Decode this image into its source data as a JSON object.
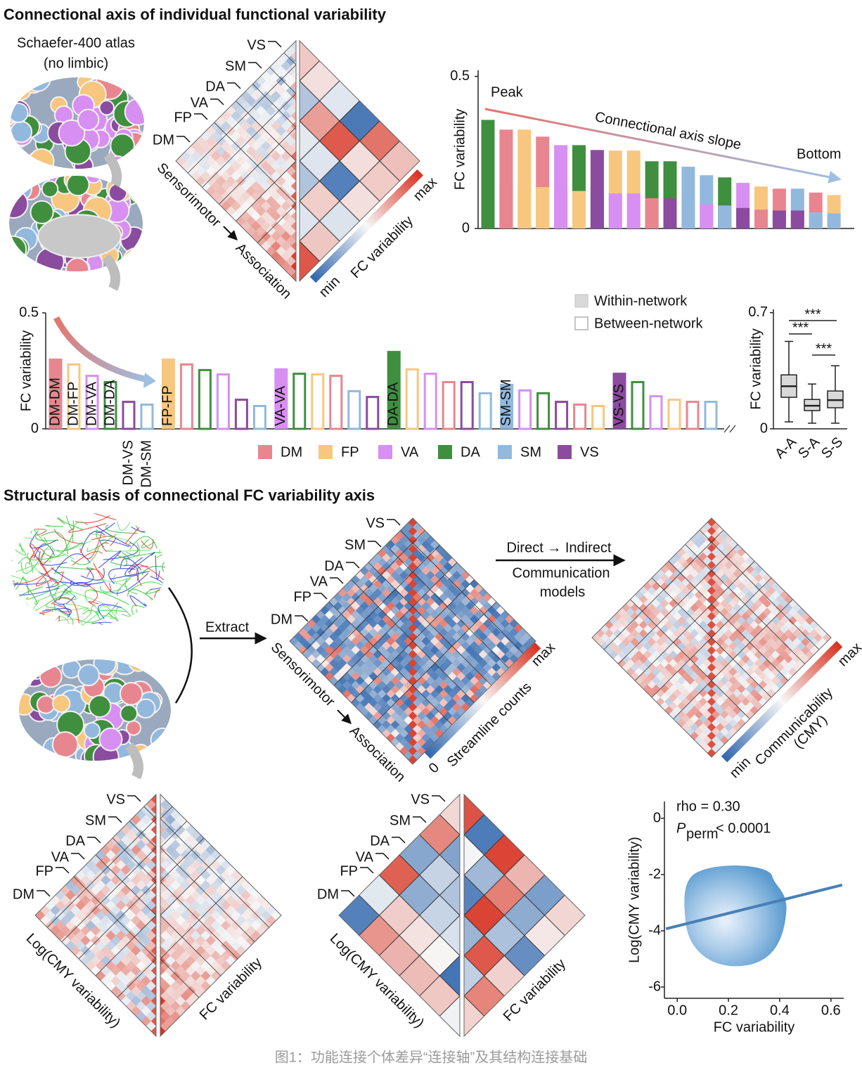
{
  "section1_title": "Connectional axis of individual functional variability",
  "atlas": [
    "Schaefer-400 atlas",
    "(no limbic)"
  ],
  "matrix_labels": [
    "VS",
    "SM",
    "DA",
    "VA",
    "FP",
    "DM"
  ],
  "axis_from": "Sensorimotor",
  "axis_to": "Association",
  "fc_colorbar": {
    "min": "min",
    "max": "max",
    "label": "FC variability"
  },
  "section2_title": "Structural basis of connectional FC variability axis",
  "extract": "Extract",
  "comm_models": [
    "Direct → Indirect",
    "Communication",
    "models"
  ],
  "sc_colorbar": {
    "min": "0",
    "max": "max",
    "label": "Streamline counts"
  },
  "cmy_colorbar": {
    "min": "min",
    "max": "max",
    "label": [
      "Communicability",
      "(CMY)"
    ]
  },
  "compare_labels": {
    "left": "Log(CMY variability)",
    "right": "FC variability"
  },
  "caption": "图1：功能连接个体差异“连接轴”及其结构连接基础",
  "chart_data": [
    {
      "type": "bar",
      "ylabel": "FC variability",
      "annotations": [
        "Peak",
        "Connectional axis slope",
        "Bottom"
      ],
      "values": [
        0.357,
        0.325,
        0.325,
        0.302,
        0.274,
        0.274,
        0.258,
        0.256,
        0.256,
        0.221,
        0.221,
        0.203,
        0.175,
        0.168,
        0.15,
        0.138,
        0.131,
        0.131,
        0.118,
        0.11
      ],
      "colors": [
        [
          "#3f8f3f",
          "#3f8f3f"
        ],
        [
          "#e8868f",
          "#e8868f"
        ],
        [
          "#f7c77f",
          "#f7c77f"
        ],
        [
          "#e8868f",
          "#f7c77f"
        ],
        [
          "#d88ff2",
          "#d88ff2"
        ],
        [
          "#3f8f3f",
          "#f7c77f"
        ],
        [
          "#8b4b9f",
          "#8b4b9f"
        ],
        [
          "#f7c77f",
          "#d88ff2"
        ],
        [
          "#f7c77f",
          "#d88ff2"
        ],
        [
          "#3f8f3f",
          "#e8868f"
        ],
        [
          "#3f8f3f",
          "#8b4b9f"
        ],
        [
          "#92b9dd",
          "#92b9dd"
        ],
        [
          "#92b9dd",
          "#d88ff2"
        ],
        [
          "#3f8f3f",
          "#92b9dd"
        ],
        [
          "#d88ff2",
          "#8b4b9f"
        ],
        [
          "#f7c77f",
          "#e8868f"
        ],
        [
          "#e8868f",
          "#8b4b9f"
        ],
        [
          "#92b9dd",
          "#8b4b9f"
        ],
        [
          "#e8868f",
          "#92b9dd"
        ],
        [
          "#f7c77f",
          "#92b9dd"
        ]
      ],
      "ylim": [
        0,
        0.52
      ],
      "yticks": [
        0,
        0.5
      ]
    },
    {
      "type": "bar",
      "ylabel": "FC variability",
      "categories": [
        "DM-DM",
        "DM-FP",
        "DM-VA",
        "DM-DA",
        "DM-VS",
        "DM-SM",
        "FP-FP",
        null,
        null,
        null,
        null,
        null,
        "VA-VA",
        null,
        null,
        null,
        null,
        null,
        "DA-DA",
        null,
        null,
        null,
        null,
        null,
        "SM-SM",
        null,
        null,
        null,
        null,
        null,
        "VS-VS",
        null,
        null,
        null,
        null,
        null
      ],
      "values": [
        0.303,
        0.282,
        0.233,
        0.206,
        0.121,
        0.109,
        0.303,
        0.282,
        0.258,
        0.239,
        0.13,
        0.103,
        0.261,
        0.242,
        0.239,
        0.233,
        0.167,
        0.142,
        0.336,
        0.261,
        0.242,
        0.206,
        0.206,
        0.158,
        0.194,
        0.17,
        0.158,
        0.121,
        0.109,
        0.103,
        0.242,
        0.206,
        0.145,
        0.13,
        0.121,
        0.121
      ],
      "colors": [
        "#e8868f",
        "#f7c77f",
        "#d88ff2",
        "#3f8f3f",
        "#8b4b9f",
        "#92b9dd",
        "#f7c77f",
        "#e8868f",
        "#3f8f3f",
        "#d88ff2",
        "#8b4b9f",
        "#92b9dd",
        "#d88ff2",
        "#3f8f3f",
        "#f7c77f",
        "#e8868f",
        "#92b9dd",
        "#8b4b9f",
        "#3f8f3f",
        "#f7c77f",
        "#d88ff2",
        "#e8868f",
        "#8b4b9f",
        "#92b9dd",
        "#92b9dd",
        "#d88ff2",
        "#3f8f3f",
        "#8b4b9f",
        "#e8868f",
        "#f7c77f",
        "#8b4b9f",
        "#3f8f3f",
        "#d88ff2",
        "#f7c77f",
        "#e8868f",
        "#92b9dd"
      ],
      "within": [
        true,
        false,
        false,
        false,
        false,
        false,
        true,
        false,
        false,
        false,
        false,
        false,
        true,
        false,
        false,
        false,
        false,
        false,
        true,
        false,
        false,
        false,
        false,
        false,
        true,
        false,
        false,
        false,
        false,
        false,
        true,
        false,
        false,
        false,
        false,
        false
      ],
      "fill_legend": [
        "Within-network",
        "Between-network"
      ],
      "networks": {
        "names": [
          "DM",
          "FP",
          "VA",
          "DA",
          "SM",
          "VS"
        ],
        "colors": [
          "#e8868f",
          "#f7c77f",
          "#d88ff2",
          "#3f8f3f",
          "#92b9dd",
          "#8b4b9f"
        ]
      },
      "ylim": [
        0,
        0.5
      ],
      "yticks": [
        0,
        0.5
      ]
    },
    {
      "type": "box",
      "ylabel": "FC variability",
      "categories": [
        "A-A",
        "S-A",
        "S-S"
      ],
      "whisker_low": [
        0.042,
        0.034,
        0.034
      ],
      "q1": [
        0.19,
        0.11,
        0.127
      ],
      "median": [
        0.257,
        0.139,
        0.173
      ],
      "q3": [
        0.325,
        0.177,
        0.228
      ],
      "whisker_high": [
        0.527,
        0.27,
        0.38
      ],
      "color": "#d9d9d9",
      "annotations": [
        "***",
        "***",
        "***"
      ],
      "ylim": [
        0,
        0.72
      ],
      "yticks": [
        0,
        0.7
      ]
    },
    {
      "type": "density",
      "xlabel": "FC variability",
      "ylabel": "Log(CMY variability)",
      "annotations": [
        "rho = 0.30"
      ],
      "p_value": {
        "symbol": "P",
        "subscript": "perm",
        "text": "< 0.0001"
      },
      "fit_line": {
        "x": [
          -0.044,
          0.644
        ],
        "y": [
          -3.93,
          -2.37
        ]
      },
      "color": "#4a7fb5",
      "xlim": [
        -0.05,
        0.65
      ],
      "ylim": [
        -6.4,
        0.6
      ],
      "xticks": [
        {
          "value": 0,
          "label": "0.0"
        },
        0.2,
        0.4,
        0.6
      ],
      "yticks": [
        0,
        -2,
        -4,
        -6
      ]
    }
  ]
}
